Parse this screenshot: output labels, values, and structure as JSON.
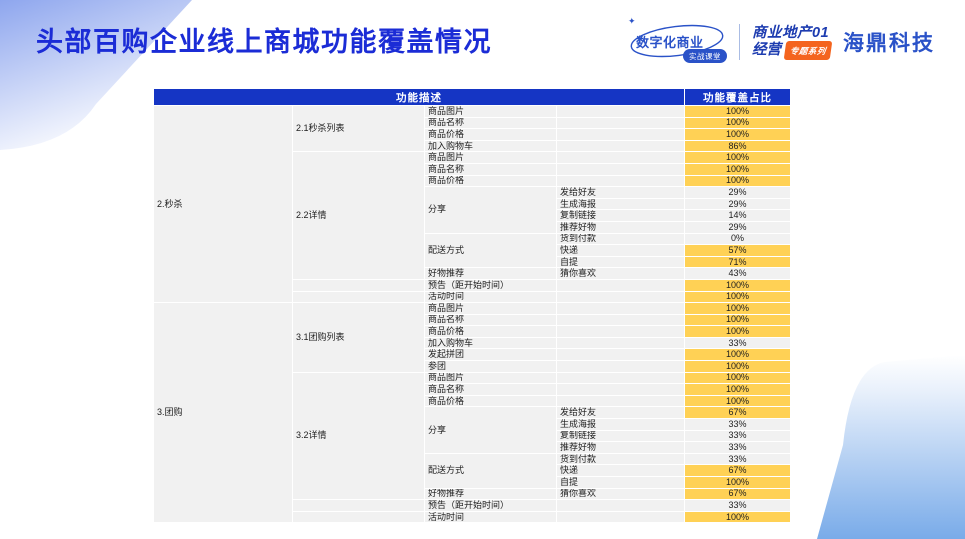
{
  "header": {
    "title": "头部百购企业线上商城功能覆盖情况",
    "brand": {
      "logo1_main": "数字化商业",
      "logo1_sub": "实战课堂",
      "sparkle": "✦",
      "series_line1": "商业地产01",
      "series_line2": "经营",
      "series_badge": "专题系列",
      "company": "海鼎科技"
    }
  },
  "colors": {
    "title_blue": "#1b2cd6",
    "header_bg": "#1535c4",
    "highlight_yellow": "#ffd155",
    "body_bg": "#f1f1f1",
    "brand_blue": "#2a52c8",
    "series_blue": "#1d3cb0",
    "badge_orange": "#f4641e",
    "decor_blue_light": "#8ea6ee",
    "decor_blue_bottom": "#79abe9"
  },
  "table": {
    "header_desc": "功能描述",
    "header_pct": "功能覆盖占比",
    "rows": [
      [
        {
          "t": "2.秒杀",
          "cls": "c1",
          "rs": 17
        },
        {
          "t": "2.1秒杀列表",
          "cls": "c2",
          "rs": 4
        },
        {
          "t": "商品图片",
          "cls": "c3"
        },
        {
          "t": "",
          "cls": "c4"
        },
        {
          "t": "100%",
          "cls": "pct",
          "hl": true
        }
      ],
      [
        {
          "t": "商品名称",
          "cls": "c3"
        },
        {
          "t": "",
          "cls": "c4"
        },
        {
          "t": "100%",
          "cls": "pct",
          "hl": true
        }
      ],
      [
        {
          "t": "商品价格",
          "cls": "c3"
        },
        {
          "t": "",
          "cls": "c4"
        },
        {
          "t": "100%",
          "cls": "pct",
          "hl": true
        }
      ],
      [
        {
          "t": "加入购物车",
          "cls": "c3"
        },
        {
          "t": "",
          "cls": "c4"
        },
        {
          "t": "86%",
          "cls": "pct",
          "hl": true
        }
      ],
      [
        {
          "t": "2.2详情",
          "cls": "c2",
          "rs": 11
        },
        {
          "t": "商品图片",
          "cls": "c3"
        },
        {
          "t": "",
          "cls": "c4"
        },
        {
          "t": "100%",
          "cls": "pct",
          "hl": true
        }
      ],
      [
        {
          "t": "商品名称",
          "cls": "c3"
        },
        {
          "t": "",
          "cls": "c4"
        },
        {
          "t": "100%",
          "cls": "pct",
          "hl": true
        }
      ],
      [
        {
          "t": "商品价格",
          "cls": "c3"
        },
        {
          "t": "",
          "cls": "c4"
        },
        {
          "t": "100%",
          "cls": "pct",
          "hl": true
        }
      ],
      [
        {
          "t": "分享",
          "cls": "c3",
          "rs": 4
        },
        {
          "t": "发给好友",
          "cls": "c4"
        },
        {
          "t": "29%",
          "cls": "pct"
        }
      ],
      [
        {
          "t": "生成海报",
          "cls": "c4"
        },
        {
          "t": "29%",
          "cls": "pct"
        }
      ],
      [
        {
          "t": "复制链接",
          "cls": "c4"
        },
        {
          "t": "14%",
          "cls": "pct"
        }
      ],
      [
        {
          "t": "推荐好物",
          "cls": "c4"
        },
        {
          "t": "29%",
          "cls": "pct"
        }
      ],
      [
        {
          "t": "配送方式",
          "cls": "c3",
          "rs": 3
        },
        {
          "t": "货到付款",
          "cls": "c4"
        },
        {
          "t": "0%",
          "cls": "pct"
        }
      ],
      [
        {
          "t": "快递",
          "cls": "c4"
        },
        {
          "t": "57%",
          "cls": "pct",
          "hl": true
        }
      ],
      [
        {
          "t": "自提",
          "cls": "c4"
        },
        {
          "t": "71%",
          "cls": "pct",
          "hl": true
        }
      ],
      [
        {
          "t": "好物推荐",
          "cls": "c3"
        },
        {
          "t": "猜你喜欢",
          "cls": "c4"
        },
        {
          "t": "43%",
          "cls": "pct"
        }
      ],
      [
        {
          "t": "",
          "cls": "c2"
        },
        {
          "t": "预告（距开始时间）",
          "cls": "c3"
        },
        {
          "t": "",
          "cls": "c4"
        },
        {
          "t": "100%",
          "cls": "pct",
          "hl": true
        }
      ],
      [
        {
          "t": "",
          "cls": "c2"
        },
        {
          "t": "活动时间",
          "cls": "c3"
        },
        {
          "t": "",
          "cls": "c4"
        },
        {
          "t": "100%",
          "cls": "pct",
          "hl": true
        }
      ],
      [
        {
          "t": "3.团购",
          "cls": "c1",
          "rs": 19
        },
        {
          "t": "3.1团购列表",
          "cls": "c2",
          "rs": 6
        },
        {
          "t": "商品图片",
          "cls": "c3"
        },
        {
          "t": "",
          "cls": "c4"
        },
        {
          "t": "100%",
          "cls": "pct",
          "hl": true
        }
      ],
      [
        {
          "t": "商品名称",
          "cls": "c3"
        },
        {
          "t": "",
          "cls": "c4"
        },
        {
          "t": "100%",
          "cls": "pct",
          "hl": true
        }
      ],
      [
        {
          "t": "商品价格",
          "cls": "c3"
        },
        {
          "t": "",
          "cls": "c4"
        },
        {
          "t": "100%",
          "cls": "pct",
          "hl": true
        }
      ],
      [
        {
          "t": "加入购物车",
          "cls": "c3"
        },
        {
          "t": "",
          "cls": "c4"
        },
        {
          "t": "33%",
          "cls": "pct"
        }
      ],
      [
        {
          "t": "发起拼团",
          "cls": "c3"
        },
        {
          "t": "",
          "cls": "c4"
        },
        {
          "t": "100%",
          "cls": "pct",
          "hl": true
        }
      ],
      [
        {
          "t": "参团",
          "cls": "c3"
        },
        {
          "t": "",
          "cls": "c4"
        },
        {
          "t": "100%",
          "cls": "pct",
          "hl": true
        }
      ],
      [
        {
          "t": "3.2详情",
          "cls": "c2",
          "rs": 11
        },
        {
          "t": "商品图片",
          "cls": "c3"
        },
        {
          "t": "",
          "cls": "c4"
        },
        {
          "t": "100%",
          "cls": "pct",
          "hl": true
        }
      ],
      [
        {
          "t": "商品名称",
          "cls": "c3"
        },
        {
          "t": "",
          "cls": "c4"
        },
        {
          "t": "100%",
          "cls": "pct",
          "hl": true
        }
      ],
      [
        {
          "t": "商品价格",
          "cls": "c3"
        },
        {
          "t": "",
          "cls": "c4"
        },
        {
          "t": "100%",
          "cls": "pct",
          "hl": true
        }
      ],
      [
        {
          "t": "分享",
          "cls": "c3",
          "rs": 4
        },
        {
          "t": "发给好友",
          "cls": "c4"
        },
        {
          "t": "67%",
          "cls": "pct",
          "hl": true
        }
      ],
      [
        {
          "t": "生成海报",
          "cls": "c4"
        },
        {
          "t": "33%",
          "cls": "pct"
        }
      ],
      [
        {
          "t": "复制链接",
          "cls": "c4"
        },
        {
          "t": "33%",
          "cls": "pct"
        }
      ],
      [
        {
          "t": "推荐好物",
          "cls": "c4"
        },
        {
          "t": "33%",
          "cls": "pct"
        }
      ],
      [
        {
          "t": "配送方式",
          "cls": "c3",
          "rs": 3
        },
        {
          "t": "货到付款",
          "cls": "c4"
        },
        {
          "t": "33%",
          "cls": "pct"
        }
      ],
      [
        {
          "t": "快递",
          "cls": "c4"
        },
        {
          "t": "67%",
          "cls": "pct",
          "hl": true
        }
      ],
      [
        {
          "t": "自提",
          "cls": "c4"
        },
        {
          "t": "100%",
          "cls": "pct",
          "hl": true
        }
      ],
      [
        {
          "t": "好物推荐",
          "cls": "c3"
        },
        {
          "t": "猜你喜欢",
          "cls": "c4"
        },
        {
          "t": "67%",
          "cls": "pct",
          "hl": true
        }
      ],
      [
        {
          "t": "",
          "cls": "c2"
        },
        {
          "t": "预告（距开始时间）",
          "cls": "c3"
        },
        {
          "t": "",
          "cls": "c4"
        },
        {
          "t": "33%",
          "cls": "pct"
        }
      ],
      [
        {
          "t": "",
          "cls": "c2"
        },
        {
          "t": "活动时间",
          "cls": "c3"
        },
        {
          "t": "",
          "cls": "c4"
        },
        {
          "t": "100%",
          "cls": "pct",
          "hl": true
        }
      ]
    ]
  }
}
